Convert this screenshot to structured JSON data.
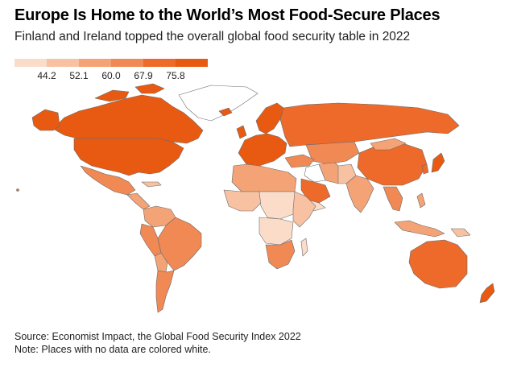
{
  "header": {
    "title": "Europe Is Home to the World’s Most Food-Secure Places",
    "subtitle": "Finland and Ireland topped the overall global food security table in 2022"
  },
  "legend": {
    "colors": [
      "#fbdcc9",
      "#f8c2a2",
      "#f4a376",
      "#f08953",
      "#ed6a2a",
      "#e85a12"
    ],
    "ticks": [
      "44.2",
      "52.1",
      "60.0",
      "67.9",
      "75.8"
    ]
  },
  "map": {
    "nodata_color": "#ffffff"
  },
  "footer": {
    "source": "Source: Economist Impact, the Global Food Security Index 2022",
    "note": "Note: Places with no data are colored white."
  }
}
